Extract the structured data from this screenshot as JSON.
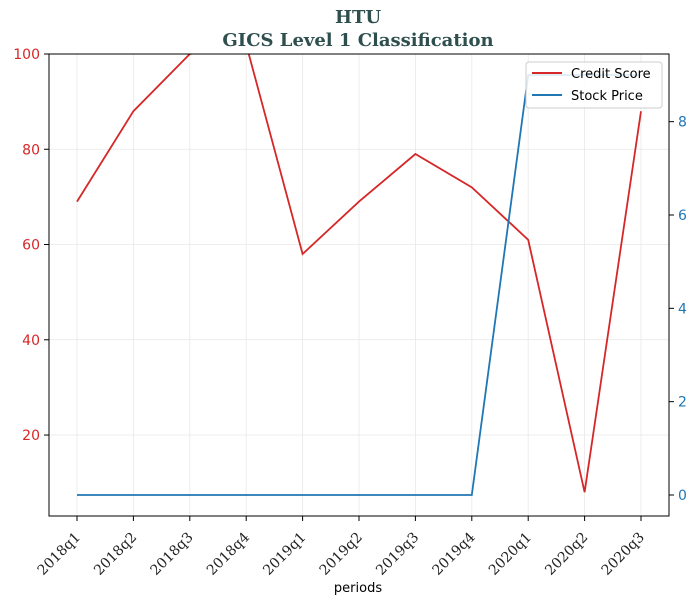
{
  "chart_data": {
    "type": "line",
    "title": "HTU",
    "subtitle": "GICS Level 1 Classification",
    "xlabel": "periods",
    "categories": [
      "2018q1",
      "2018q2",
      "2018q3",
      "2018q4",
      "2019q1",
      "2019q2",
      "2019q3",
      "2019q4",
      "2020q1",
      "2020q2",
      "2020q3"
    ],
    "left_axis": {
      "ylim": [
        3,
        100
      ],
      "ticks": [
        20,
        40,
        60,
        80,
        100
      ],
      "color": "#d62728"
    },
    "right_axis": {
      "ylim": [
        -0.45,
        9.45
      ],
      "ticks": [
        0,
        2,
        4,
        6,
        8
      ],
      "color": "#1f77b4"
    },
    "grid": true,
    "legend": {
      "position": "top-right"
    },
    "series": [
      {
        "name": "Credit Score",
        "axis": "left",
        "color": "#d62728",
        "values": [
          69,
          88,
          100,
          102,
          58,
          69,
          79,
          72,
          61,
          8,
          88
        ]
      },
      {
        "name": "Stock Price",
        "axis": "right",
        "color": "#1f77b4",
        "values": [
          0,
          0,
          0,
          0,
          0,
          0,
          0,
          0,
          9,
          9,
          9
        ]
      }
    ]
  }
}
